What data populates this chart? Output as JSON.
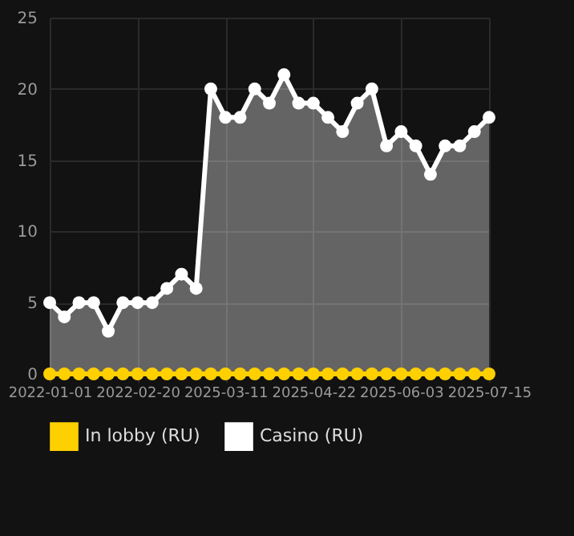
{
  "chart_data": {
    "type": "area",
    "categories": [
      "2022-01-01",
      null,
      null,
      null,
      null,
      null,
      "2022-02-20",
      null,
      null,
      null,
      null,
      null,
      "2025-03-11",
      null,
      null,
      null,
      null,
      null,
      "2025-04-22",
      null,
      null,
      null,
      null,
      null,
      "2025-06-03",
      null,
      null,
      null,
      null,
      null,
      "2025-07-15"
    ],
    "series": [
      {
        "name": "In lobby (RU)",
        "type": "line",
        "color": "#ffd000",
        "values": [
          0,
          0,
          0,
          0,
          0,
          0,
          0,
          0,
          0,
          0,
          0,
          0,
          0,
          0,
          0,
          0,
          0,
          0,
          0,
          0,
          0,
          0,
          0,
          0,
          0,
          0,
          0,
          0,
          0,
          0,
          0
        ]
      },
      {
        "name": "Casino (RU)",
        "color": "#ffffff",
        "values": [
          5,
          4,
          5,
          5,
          3,
          5,
          5,
          5,
          6,
          7,
          6,
          20,
          18,
          18,
          20,
          19,
          21,
          19,
          19,
          18,
          17,
          19,
          20,
          16,
          17,
          16,
          14,
          16,
          16,
          17,
          18
        ]
      }
    ],
    "ylim": [
      0,
      25
    ],
    "yticks": [
      0,
      5,
      10,
      15,
      20,
      25
    ],
    "grid": true,
    "legend": "bottom",
    "marker": "circle"
  }
}
